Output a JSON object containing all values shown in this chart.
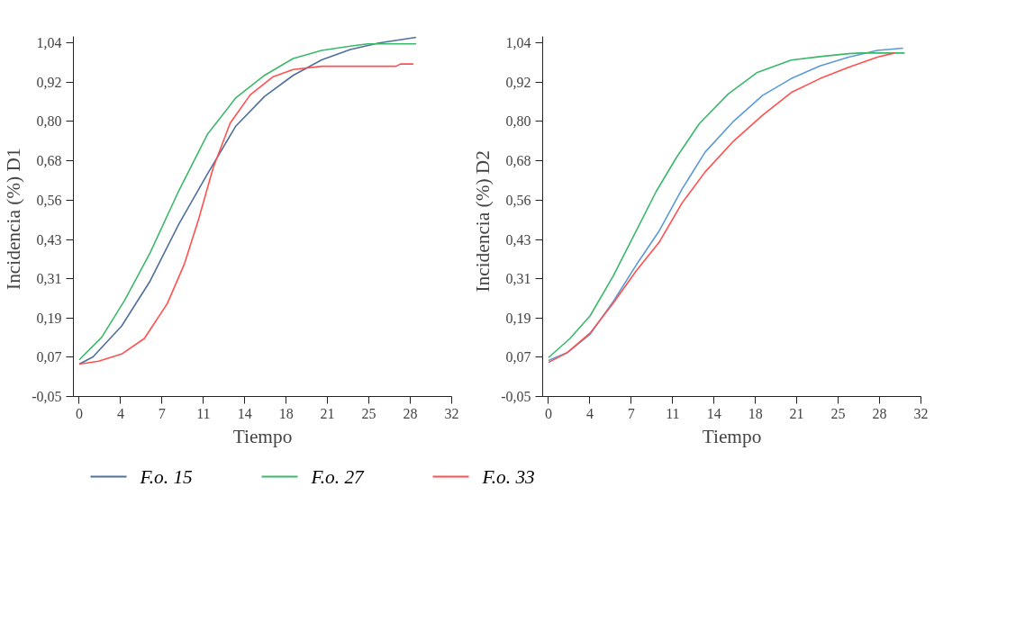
{
  "chart_data": [
    {
      "type": "line",
      "xlabel": "Tiempo",
      "ylabel": "Incidencia  (%) D1",
      "legend": "bottom",
      "grid": false,
      "xlim": [
        -0.5,
        32
      ],
      "ylim": [
        -0.05,
        1.06
      ],
      "xticks": [
        0,
        {
          "value": 3.56,
          "label": "4"
        },
        {
          "value": 7.11,
          "label": "7"
        },
        {
          "value": 10.67,
          "label": "11"
        },
        {
          "value": 14.22,
          "label": "14"
        },
        {
          "value": 17.78,
          "label": "18"
        },
        {
          "value": 21.33,
          "label": "21"
        },
        {
          "value": 24.89,
          "label": "25"
        },
        {
          "value": 28.44,
          "label": "28"
        },
        32
      ],
      "yticks": [
        {
          "value": -0.05,
          "label": "-0,05"
        },
        {
          "value": 0.071,
          "label": "0,07"
        },
        {
          "value": 0.192,
          "label": "0,19"
        },
        {
          "value": 0.313,
          "label": "0,31"
        },
        {
          "value": 0.434,
          "label": "0,43"
        },
        {
          "value": 0.556,
          "label": "0,56"
        },
        {
          "value": 0.677,
          "label": "0,68"
        },
        {
          "value": 0.798,
          "label": "0,80"
        },
        {
          "value": 0.919,
          "label": "0,92"
        },
        {
          "value": 1.04,
          "label": "1,04"
        }
      ],
      "series": [
        {
          "name": "F.o. 15",
          "color": "#4f6f9f",
          "x": [
            0,
            1.18,
            3.64,
            6.09,
            8.55,
            11.01,
            13.46,
            15.92,
            18.38,
            20.83,
            23.29,
            25.75,
            28.94
          ],
          "values": [
            0.05,
            0.072,
            0.167,
            0.306,
            0.481,
            0.636,
            0.784,
            0.875,
            0.94,
            0.988,
            1.02,
            1.04,
            1.057
          ]
        },
        {
          "name": "F.o. 27",
          "color": "#3cb86a",
          "x": [
            0,
            1.92,
            3.88,
            6.09,
            8.55,
            11.01,
            13.46,
            15.92,
            18.38,
            20.83,
            23.29,
            24.77,
            28.94
          ],
          "values": [
            0.063,
            0.132,
            0.245,
            0.393,
            0.584,
            0.758,
            0.871,
            0.94,
            0.992,
            1.017,
            1.03,
            1.037,
            1.037
          ]
        },
        {
          "name": "F.o. 33",
          "color": "#ff5050",
          "x": [
            0,
            1.67,
            3.64,
            5.6,
            7.57,
            9.04,
            10.27,
            11.5,
            12.97,
            14.69,
            16.66,
            18.38,
            20.83,
            27.22,
            27.59,
            28.7
          ],
          "values": [
            0.05,
            0.059,
            0.081,
            0.129,
            0.237,
            0.359,
            0.498,
            0.654,
            0.793,
            0.88,
            0.936,
            0.958,
            0.968,
            0.968,
            0.975,
            0.975
          ]
        }
      ]
    },
    {
      "type": "line",
      "xlabel": "Tiempo",
      "ylabel": "Incidencia   (%) D2",
      "grid": false,
      "xlim": [
        -0.5,
        32
      ],
      "ylim": [
        -0.05,
        1.06
      ],
      "xticks": [
        0,
        {
          "value": 3.56,
          "label": "4"
        },
        {
          "value": 7.11,
          "label": "7"
        },
        {
          "value": 10.67,
          "label": "11"
        },
        {
          "value": 14.22,
          "label": "14"
        },
        {
          "value": 17.78,
          "label": "18"
        },
        {
          "value": 21.33,
          "label": "21"
        },
        {
          "value": 24.89,
          "label": "25"
        },
        {
          "value": 28.44,
          "label": "28"
        },
        32
      ],
      "yticks": [
        {
          "value": -0.05,
          "label": "-0,05"
        },
        {
          "value": 0.071,
          "label": "0,07"
        },
        {
          "value": 0.192,
          "label": "0,19"
        },
        {
          "value": 0.313,
          "label": "0,31"
        },
        {
          "value": 0.434,
          "label": "0,43"
        },
        {
          "value": 0.556,
          "label": "0,56"
        },
        {
          "value": 0.677,
          "label": "0,68"
        },
        {
          "value": 0.798,
          "label": "0,80"
        },
        {
          "value": 0.919,
          "label": "0,92"
        },
        {
          "value": 1.04,
          "label": "1,04"
        }
      ],
      "series": [
        {
          "color": "#5b9bd5",
          "x": [
            0,
            1.6,
            3.58,
            5.55,
            7.53,
            9.5,
            11.48,
            13.45,
            15.91,
            18.38,
            20.85,
            23.32,
            25.78,
            28.25,
            30.47
          ],
          "values": [
            0.061,
            0.085,
            0.142,
            0.242,
            0.355,
            0.46,
            0.59,
            0.703,
            0.799,
            0.878,
            0.93,
            0.969,
            0.996,
            1.017,
            1.024
          ]
        },
        {
          "color": "#3cb86a",
          "x": [
            0,
            1.85,
            3.58,
            5.55,
            7.53,
            9.25,
            10.98,
            12.95,
            15.42,
            17.89,
            20.85,
            23.32,
            25.78,
            26.77,
            30.6
          ],
          "values": [
            0.07,
            0.129,
            0.199,
            0.321,
            0.46,
            0.582,
            0.686,
            0.791,
            0.882,
            0.948,
            0.987,
            0.998,
            1.007,
            1.009,
            1.009
          ]
        },
        {
          "color": "#ff5050",
          "x": [
            0,
            1.6,
            3.58,
            5.55,
            7.53,
            9.5,
            11.48,
            13.45,
            15.91,
            18.38,
            20.85,
            23.32,
            25.78,
            28.25,
            29.73
          ],
          "values": [
            0.055,
            0.085,
            0.146,
            0.237,
            0.337,
            0.425,
            0.547,
            0.642,
            0.738,
            0.817,
            0.887,
            0.93,
            0.965,
            0.996,
            1.009
          ]
        }
      ]
    }
  ]
}
